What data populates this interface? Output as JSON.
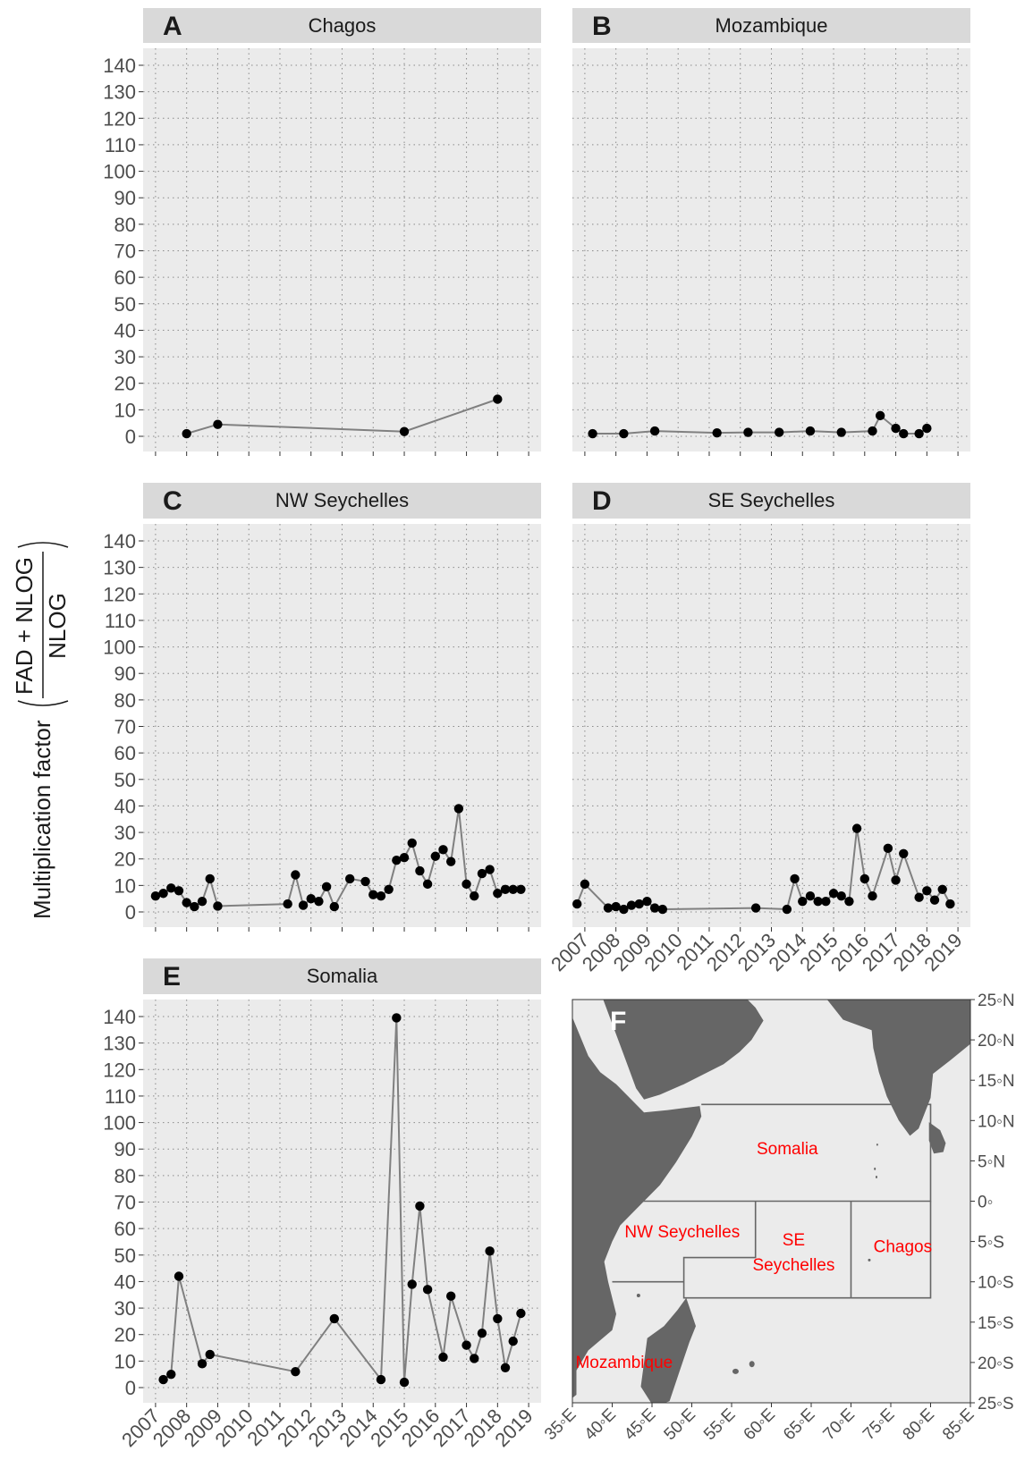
{
  "figure": {
    "ylabel_text": "Multiplication factor",
    "ylabel_numerator": "FAD + NLOG",
    "ylabel_denominator": "NLOG"
  },
  "chart_data": [
    {
      "type": "line",
      "panel_letter": "A",
      "title": "Chagos",
      "ylim": [
        0,
        140
      ],
      "yticks": [
        0,
        10,
        20,
        30,
        40,
        50,
        60,
        70,
        80,
        90,
        100,
        110,
        120,
        130,
        140
      ],
      "xlim": [
        2006.6,
        2019.4
      ],
      "xticks": [
        "2007",
        "2008",
        "2009",
        "2010",
        "2011",
        "2012",
        "2013",
        "2014",
        "2015",
        "2016",
        "2017",
        "2018",
        "2019"
      ],
      "x_tick_labels_shown": false,
      "grid": true,
      "series": [
        {
          "x": [
            2008.0,
            2009.0,
            2015.0,
            2018.0
          ],
          "y": [
            1.0,
            4.5,
            1.8,
            14.0
          ]
        }
      ]
    },
    {
      "type": "line",
      "panel_letter": "B",
      "title": "Mozambique",
      "ylim": [
        0,
        140
      ],
      "yticks": [
        0,
        10,
        20,
        30,
        40,
        50,
        60,
        70,
        80,
        90,
        100,
        110,
        120,
        130,
        140
      ],
      "y_tick_labels_shown": false,
      "xlim": [
        2006.6,
        2019.4
      ],
      "xticks": [
        "2007",
        "2008",
        "2009",
        "2010",
        "2011",
        "2012",
        "2013",
        "2014",
        "2015",
        "2016",
        "2017",
        "2018",
        "2019"
      ],
      "x_tick_labels_shown": false,
      "grid": true,
      "series": [
        {
          "x": [
            2007.25,
            2008.25,
            2009.25,
            2011.25,
            2012.25,
            2013.25,
            2014.25,
            2015.25,
            2016.25,
            2016.5,
            2017.0,
            2017.25,
            2017.75,
            2018.0
          ],
          "y": [
            1.0,
            1.0,
            2.0,
            1.3,
            1.5,
            1.5,
            2.0,
            1.5,
            2.0,
            7.8,
            3.0,
            1.0,
            1.0,
            3.0
          ]
        }
      ]
    },
    {
      "type": "line",
      "panel_letter": "C",
      "title": "NW Seychelles",
      "ylim": [
        0,
        140
      ],
      "yticks": [
        0,
        10,
        20,
        30,
        40,
        50,
        60,
        70,
        80,
        90,
        100,
        110,
        120,
        130,
        140
      ],
      "xlim": [
        2006.6,
        2019.4
      ],
      "xticks": [
        "2007",
        "2008",
        "2009",
        "2010",
        "2011",
        "2012",
        "2013",
        "2014",
        "2015",
        "2016",
        "2017",
        "2018",
        "2019"
      ],
      "x_tick_labels_shown": false,
      "grid": true,
      "series": [
        {
          "x": [
            2007.0,
            2007.25,
            2007.5,
            2007.75,
            2008.0,
            2008.25,
            2008.5,
            2008.75,
            2009.0,
            2011.25,
            2011.5,
            2011.75,
            2012.0,
            2012.25,
            2012.5,
            2012.75,
            2013.25,
            2013.75,
            2014.0,
            2014.25,
            2014.5,
            2014.75,
            2015.0,
            2015.25,
            2015.5,
            2015.75,
            2016.0,
            2016.25,
            2016.5,
            2016.75,
            2017.0,
            2017.25,
            2017.5,
            2017.75,
            2018.0,
            2018.25,
            2018.5,
            2018.75
          ],
          "y": [
            6.0,
            7.0,
            9.0,
            8.0,
            3.5,
            2.0,
            4.0,
            12.5,
            2.2,
            3.0,
            14.0,
            2.5,
            5.0,
            4.0,
            9.5,
            2.0,
            12.5,
            11.5,
            6.5,
            6.0,
            8.5,
            19.5,
            20.5,
            26.0,
            15.5,
            10.5,
            21.0,
            23.5,
            19.0,
            39.0,
            10.5,
            6.0,
            14.5,
            16.0,
            7.0,
            8.5,
            8.5,
            8.5
          ]
        }
      ]
    },
    {
      "type": "line",
      "panel_letter": "D",
      "title": "SE Seychelles",
      "ylim": [
        0,
        140
      ],
      "yticks": [
        0,
        10,
        20,
        30,
        40,
        50,
        60,
        70,
        80,
        90,
        100,
        110,
        120,
        130,
        140
      ],
      "y_tick_labels_shown": false,
      "xlim": [
        2006.6,
        2019.4
      ],
      "xticks": [
        "2007",
        "2008",
        "2009",
        "2010",
        "2011",
        "2012",
        "2013",
        "2014",
        "2015",
        "2016",
        "2017",
        "2018",
        "2019"
      ],
      "grid": true,
      "series": [
        {
          "x": [
            2006.75,
            2007.0,
            2007.75,
            2008.0,
            2008.25,
            2008.5,
            2008.75,
            2009.0,
            2009.25,
            2009.5,
            2012.5,
            2013.5,
            2013.75,
            2014.0,
            2014.25,
            2014.5,
            2014.75,
            2015.0,
            2015.25,
            2015.5,
            2015.75,
            2016.0,
            2016.25,
            2016.75,
            2017.0,
            2017.25,
            2017.75,
            2018.0,
            2018.25,
            2018.5,
            2018.75
          ],
          "y": [
            3.0,
            10.5,
            1.5,
            2.0,
            1.0,
            2.5,
            3.0,
            4.0,
            1.5,
            1.0,
            1.5,
            1.0,
            12.5,
            4.0,
            6.0,
            4.0,
            4.0,
            7.0,
            6.0,
            4.0,
            31.5,
            12.5,
            6.0,
            24.0,
            12.0,
            22.0,
            5.5,
            8.0,
            4.5,
            8.5,
            3.0
          ]
        }
      ]
    },
    {
      "type": "line",
      "panel_letter": "E",
      "title": "Somalia",
      "ylim": [
        0,
        140
      ],
      "yticks": [
        0,
        10,
        20,
        30,
        40,
        50,
        60,
        70,
        80,
        90,
        100,
        110,
        120,
        130,
        140
      ],
      "xlim": [
        2006.6,
        2019.4
      ],
      "xticks": [
        "2007",
        "2008",
        "2009",
        "2010",
        "2011",
        "2012",
        "2013",
        "2014",
        "2015",
        "2016",
        "2017",
        "2018",
        "2019"
      ],
      "grid": true,
      "series": [
        {
          "x": [
            2007.25,
            2007.5,
            2007.75,
            2008.5,
            2008.75,
            2011.5,
            2012.75,
            2014.25,
            2014.75,
            2015.0,
            2015.25,
            2015.5,
            2015.75,
            2016.25,
            2016.5,
            2017.0,
            2017.25,
            2017.5,
            2017.75,
            2018.0,
            2018.25,
            2018.5,
            2018.75
          ],
          "y": [
            3.0,
            5.0,
            42.0,
            9.0,
            12.5,
            6.0,
            26.0,
            3.0,
            139.5,
            2.0,
            39.0,
            68.5,
            37.0,
            11.5,
            34.5,
            16.0,
            11.0,
            20.5,
            51.5,
            26.0,
            7.5,
            17.5,
            28.0
          ]
        }
      ]
    }
  ],
  "map": {
    "panel_letter": "F",
    "lon_ticks": [
      "35◦E",
      "40◦E",
      "45◦E",
      "50◦E",
      "55◦E",
      "60◦E",
      "65◦E",
      "70◦E",
      "75◦E",
      "80◦E",
      "85◦E"
    ],
    "lat_ticks": [
      "25◦N",
      "20◦N",
      "15◦N",
      "10◦N",
      "5◦N",
      "0◦",
      "5◦S",
      "10◦S",
      "15◦S",
      "20◦S",
      "25◦S"
    ],
    "regions": [
      {
        "label": "Somalia"
      },
      {
        "label": "NW Seychelles"
      },
      {
        "label": "SE"
      },
      {
        "label": "Seychelles"
      },
      {
        "label": "Chagos"
      },
      {
        "label": "Mozambique"
      }
    ],
    "colors": {
      "sea": "#ebebeb",
      "land": "#666666",
      "boundary": "#666666",
      "label": "#ff0000"
    }
  },
  "colors": {
    "panel_bg": "#ebebeb",
    "strip_bg": "#d9d9d9",
    "line": "#808080",
    "point": "#000000",
    "grid": "#8a8a8a"
  }
}
